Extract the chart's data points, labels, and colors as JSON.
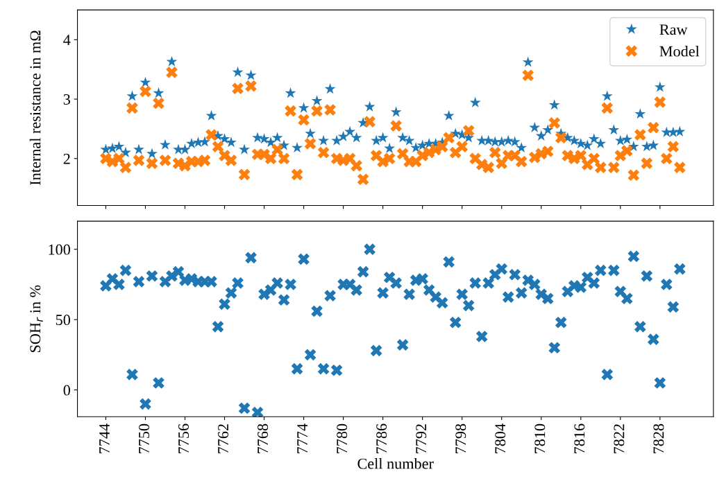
{
  "chart_data": [
    {
      "type": "scatter",
      "ylabel": "Internal resistance in mΩ",
      "xlim": [
        7739.7,
        7836.1
      ],
      "ylim": [
        1.21,
        4.5
      ],
      "xticks": [
        7744,
        7750,
        7756,
        7762,
        7768,
        7774,
        7780,
        7786,
        7792,
        7798,
        7804,
        7810,
        7816,
        7822,
        7828
      ],
      "yticks": [
        2,
        3,
        4
      ],
      "tick_labels": "y",
      "legend": "top right",
      "grid": false,
      "x": [
        7744,
        7745,
        7746,
        7747,
        7748,
        7749,
        7750,
        7751,
        7752,
        7753,
        7754,
        7755,
        7756,
        7757,
        7758,
        7759,
        7760,
        7761,
        7762,
        7763,
        7764,
        7765,
        7766,
        7767,
        7768,
        7769,
        7770,
        7771,
        7772,
        7773,
        7774,
        7775,
        7776,
        7777,
        7778,
        7779,
        7780,
        7781,
        7782,
        7783,
        7784,
        7785,
        7786,
        7787,
        7788,
        7789,
        7790,
        7791,
        7792,
        7793,
        7794,
        7795,
        7796,
        7797,
        7798,
        7799,
        7800,
        7801,
        7802,
        7803,
        7804,
        7805,
        7806,
        7807,
        7808,
        7809,
        7810,
        7811,
        7812,
        7813,
        7814,
        7815,
        7816,
        7817,
        7818,
        7819,
        7820,
        7821,
        7822,
        7823,
        7824,
        7825,
        7826,
        7827,
        7828,
        7829,
        7830,
        7831
      ],
      "series": [
        {
          "name": "Raw",
          "color": "#1f77b4",
          "marker": "star",
          "values": [
            2.15,
            2.17,
            2.2,
            2.1,
            3.05,
            2.15,
            3.28,
            2.08,
            3.1,
            2.23,
            3.63,
            2.15,
            2.15,
            2.25,
            2.27,
            2.28,
            2.72,
            2.38,
            2.33,
            2.27,
            3.45,
            2.15,
            3.4,
            2.35,
            2.33,
            2.27,
            2.35,
            2.22,
            3.1,
            2.18,
            2.85,
            2.42,
            2.97,
            2.3,
            3.17,
            2.3,
            2.37,
            2.45,
            2.35,
            2.6,
            2.87,
            2.3,
            2.35,
            2.17,
            2.78,
            2.35,
            2.3,
            2.18,
            2.22,
            2.25,
            2.25,
            2.27,
            2.72,
            2.42,
            2.4,
            2.35,
            2.94,
            2.3,
            2.3,
            2.28,
            2.28,
            2.3,
            2.28,
            2.18,
            3.62,
            2.52,
            2.38,
            2.48,
            2.9,
            2.42,
            2.35,
            2.3,
            2.25,
            2.22,
            2.33,
            2.25,
            3.05,
            2.48,
            2.3,
            2.32,
            2.2,
            2.75,
            2.2,
            2.22,
            3.2,
            2.44,
            2.44,
            2.45
          ]
        },
        {
          "name": "Model",
          "color": "#ff7f0e",
          "marker": "cross",
          "values": [
            2.0,
            1.95,
            2.0,
            1.85,
            2.85,
            1.97,
            3.13,
            1.92,
            2.93,
            1.97,
            3.45,
            1.92,
            1.88,
            1.95,
            1.95,
            1.97,
            2.4,
            2.2,
            2.05,
            1.97,
            3.18,
            1.73,
            3.22,
            2.07,
            2.07,
            2.0,
            2.15,
            2.0,
            2.8,
            1.73,
            2.65,
            2.25,
            2.8,
            2.1,
            2.82,
            2.0,
            1.97,
            2.0,
            1.88,
            1.65,
            2.62,
            2.05,
            1.95,
            2.0,
            2.55,
            2.08,
            1.95,
            1.95,
            2.05,
            2.1,
            2.15,
            2.2,
            2.35,
            2.1,
            2.2,
            2.47,
            2.0,
            1.9,
            1.85,
            2.1,
            1.92,
            2.05,
            2.05,
            1.95,
            3.4,
            2.02,
            2.08,
            2.12,
            2.6,
            2.35,
            2.05,
            2.0,
            2.05,
            1.9,
            2.0,
            1.85,
            2.85,
            1.85,
            2.05,
            2.13,
            1.72,
            2.4,
            1.92,
            2.52,
            2.95,
            2.0,
            2.2,
            1.85
          ]
        }
      ]
    },
    {
      "type": "scatter",
      "xlabel": "Cell number",
      "ylabel": "SOH$_{r}$ in %",
      "xlim": [
        7739.7,
        7836.1
      ],
      "ylim": [
        -19,
        120
      ],
      "xticks": [
        7744,
        7750,
        7756,
        7762,
        7768,
        7774,
        7780,
        7786,
        7792,
        7798,
        7804,
        7810,
        7816,
        7822,
        7828
      ],
      "yticks": [
        0,
        50,
        100
      ],
      "grid": false,
      "x": [
        7744,
        7745,
        7746,
        7747,
        7748,
        7749,
        7750,
        7751,
        7752,
        7753,
        7754,
        7755,
        7756,
        7757,
        7758,
        7759,
        7760,
        7761,
        7762,
        7763,
        7764,
        7765,
        7766,
        7767,
        7768,
        7769,
        7770,
        7771,
        7772,
        7773,
        7774,
        7775,
        7776,
        7777,
        7778,
        7779,
        7780,
        7781,
        7782,
        7783,
        7784,
        7785,
        7786,
        7787,
        7788,
        7789,
        7790,
        7791,
        7792,
        7793,
        7794,
        7795,
        7796,
        7797,
        7798,
        7799,
        7800,
        7801,
        7802,
        7803,
        7804,
        7805,
        7806,
        7807,
        7808,
        7809,
        7810,
        7811,
        7812,
        7813,
        7814,
        7815,
        7816,
        7817,
        7818,
        7819,
        7820,
        7821,
        7822,
        7823,
        7824,
        7825,
        7826,
        7827,
        7828,
        7829,
        7830,
        7831
      ],
      "series": [
        {
          "color": "#1f77b4",
          "marker": "cross",
          "values": [
            74,
            79,
            75,
            85,
            11,
            77,
            -10,
            81,
            5,
            77,
            81,
            84,
            78,
            79,
            77,
            77,
            77,
            45,
            61,
            69,
            76,
            -13,
            94,
            -16,
            68,
            71,
            76,
            64,
            75,
            15,
            93,
            25,
            56,
            15,
            67,
            14,
            75,
            75,
            71,
            84,
            100,
            28,
            69,
            80,
            76,
            32,
            68,
            78,
            79,
            71,
            66,
            62,
            91,
            48,
            68,
            60,
            76,
            38,
            76,
            82,
            86,
            66,
            82,
            69,
            78,
            75,
            68,
            65,
            30,
            48,
            70,
            74,
            73,
            80,
            76,
            85,
            11,
            85,
            70,
            65,
            95,
            45,
            81,
            36,
            5,
            75,
            59,
            86
          ]
        }
      ]
    }
  ]
}
